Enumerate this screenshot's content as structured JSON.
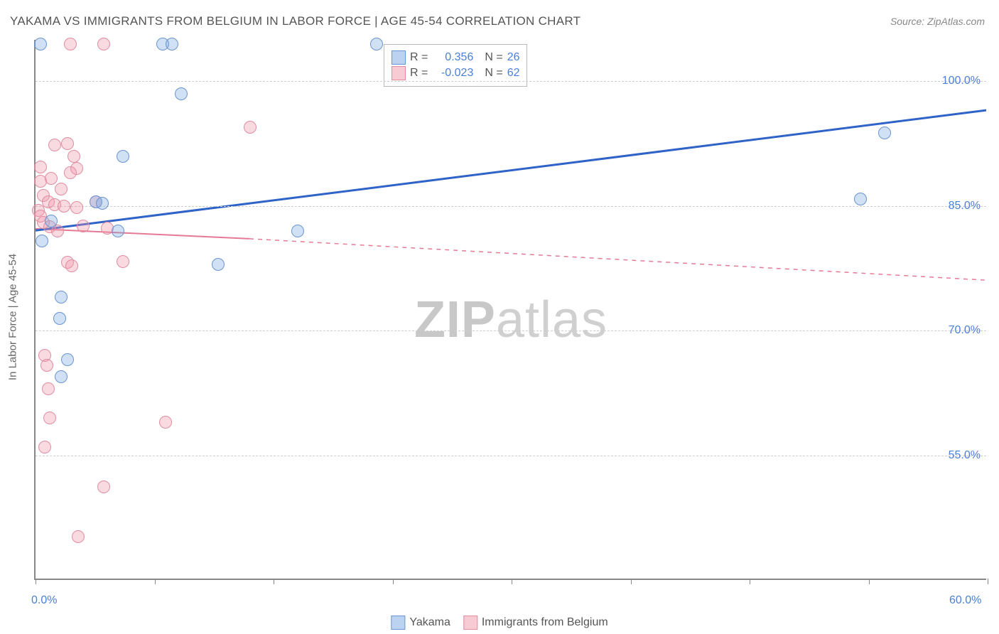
{
  "title": "YAKAMA VS IMMIGRANTS FROM BELGIUM IN LABOR FORCE | AGE 45-54 CORRELATION CHART",
  "source": "Source: ZipAtlas.com",
  "y_axis_title": "In Labor Force | Age 45-54",
  "watermark": {
    "left": "ZIP",
    "right": "atlas"
  },
  "chart": {
    "type": "scatter",
    "background_color": "#ffffff",
    "grid_color": "#cccccc",
    "axis_color": "#888888",
    "xlim": [
      0,
      60
    ],
    "ylim": [
      40,
      105
    ],
    "x_ticks": [
      0,
      7.5,
      15,
      22.5,
      30,
      37.5,
      45,
      52.5,
      60
    ],
    "x_tick_labels": {
      "0": "0.0%",
      "60": "60.0%"
    },
    "y_grid": [
      55,
      70,
      85,
      100
    ],
    "y_tick_labels": {
      "55": "55.0%",
      "70": "70.0%",
      "85": "85.0%",
      "100": "100.0%"
    },
    "label_color": "#4a7fd8",
    "label_fontsize": 16,
    "marker_size": 18,
    "series": {
      "yakama": {
        "label": "Yakama",
        "color_fill": "rgba(120,165,225,0.35)",
        "color_stroke": "#6a95d0",
        "trend_color": "#2f63c8",
        "trend_width": 3,
        "r": 0.356,
        "n": 26,
        "trend": {
          "x1": 0,
          "y1": 82.0,
          "x2": 60,
          "y2": 96.5
        },
        "points": [
          {
            "x": 0.3,
            "y": 104.5
          },
          {
            "x": 8.0,
            "y": 104.5
          },
          {
            "x": 8.6,
            "y": 104.5
          },
          {
            "x": 21.5,
            "y": 104.5
          },
          {
            "x": 9.2,
            "y": 98.5
          },
          {
            "x": 5.5,
            "y": 91.0
          },
          {
            "x": 3.8,
            "y": 85.5
          },
          {
            "x": 4.2,
            "y": 85.3
          },
          {
            "x": 52.0,
            "y": 85.8
          },
          {
            "x": 1.0,
            "y": 83.2
          },
          {
            "x": 0.4,
            "y": 80.8
          },
          {
            "x": 5.2,
            "y": 82.0
          },
          {
            "x": 16.5,
            "y": 82.0
          },
          {
            "x": 53.5,
            "y": 93.8
          },
          {
            "x": 11.5,
            "y": 78.0
          },
          {
            "x": 1.6,
            "y": 74.0
          },
          {
            "x": 1.5,
            "y": 71.5
          },
          {
            "x": 2.0,
            "y": 66.5
          },
          {
            "x": 1.6,
            "y": 64.5
          }
        ]
      },
      "belgium": {
        "label": "Immigrants from Belgium",
        "color_fill": "rgba(240,150,170,0.35)",
        "color_stroke": "#e08da0",
        "trend_color": "#e67a95",
        "trend_width": 2,
        "r": -0.023,
        "n": 62,
        "trend_solid": {
          "x1": 0,
          "y1": 82.2,
          "x2": 13.5,
          "y2": 81.0
        },
        "trend_dash": {
          "x1": 13.5,
          "y1": 81.0,
          "x2": 60,
          "y2": 76.0
        },
        "points": [
          {
            "x": 2.2,
            "y": 104.5
          },
          {
            "x": 4.3,
            "y": 104.5
          },
          {
            "x": 1.2,
            "y": 92.3
          },
          {
            "x": 2.0,
            "y": 92.5
          },
          {
            "x": 2.4,
            "y": 91.0
          },
          {
            "x": 2.6,
            "y": 89.5
          },
          {
            "x": 2.2,
            "y": 89.0
          },
          {
            "x": 0.3,
            "y": 88.0
          },
          {
            "x": 0.5,
            "y": 86.3
          },
          {
            "x": 0.8,
            "y": 85.5
          },
          {
            "x": 1.2,
            "y": 85.2
          },
          {
            "x": 1.8,
            "y": 85.0
          },
          {
            "x": 0.2,
            "y": 84.5
          },
          {
            "x": 0.3,
            "y": 83.8
          },
          {
            "x": 0.5,
            "y": 83.0
          },
          {
            "x": 0.9,
            "y": 82.5
          },
          {
            "x": 1.4,
            "y": 82.0
          },
          {
            "x": 2.6,
            "y": 84.8
          },
          {
            "x": 3.8,
            "y": 85.5
          },
          {
            "x": 3.0,
            "y": 82.6
          },
          {
            "x": 4.5,
            "y": 82.3
          },
          {
            "x": 13.5,
            "y": 94.5
          },
          {
            "x": 2.0,
            "y": 78.2
          },
          {
            "x": 2.3,
            "y": 77.8
          },
          {
            "x": 5.5,
            "y": 78.3
          },
          {
            "x": 0.6,
            "y": 67.0
          },
          {
            "x": 0.7,
            "y": 65.8
          },
          {
            "x": 0.8,
            "y": 63.0
          },
          {
            "x": 0.9,
            "y": 59.5
          },
          {
            "x": 8.2,
            "y": 59.0
          },
          {
            "x": 0.6,
            "y": 56.0
          },
          {
            "x": 4.3,
            "y": 51.2
          },
          {
            "x": 2.7,
            "y": 45.2
          },
          {
            "x": 0.3,
            "y": 89.7
          },
          {
            "x": 1.0,
            "y": 88.3
          },
          {
            "x": 1.6,
            "y": 87.0
          }
        ]
      }
    }
  },
  "legend_top": {
    "r_label": "R =",
    "n_label": "N ="
  }
}
